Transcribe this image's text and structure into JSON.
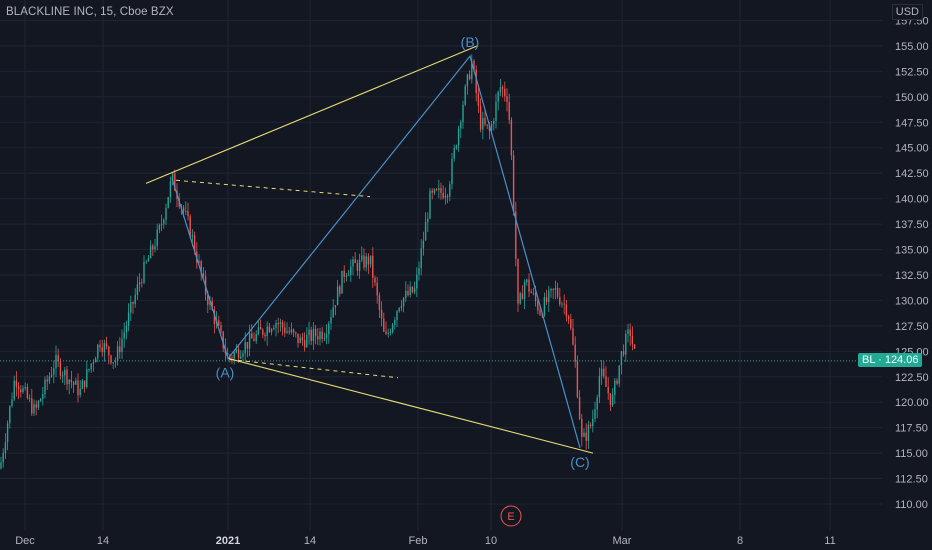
{
  "header": {
    "title": "BLACKLINE INC, 15, Cboe BZX",
    "currency": "USD"
  },
  "last_price": {
    "symbol": "BL",
    "value": "124.06",
    "label": "BL · 124.06"
  },
  "event_marker": "E",
  "colors": {
    "background": "#131722",
    "grid": "#1f2433",
    "candle_up": "#26a69a",
    "candle_down": "#ef5350",
    "wave": "#4a90c6",
    "trendline": "#e6db74",
    "dashed": "#e6db74",
    "price_line": "#26a69a",
    "axis_text": "#b2b5be"
  },
  "chart_data": {
    "type": "candlestick",
    "title": "BLACKLINE INC, 15, Cboe BZX",
    "y_axis": {
      "ticks": [
        "110.00",
        "112.50",
        "115.00",
        "117.50",
        "120.00",
        "122.50",
        "125.00",
        "127.50",
        "130.00",
        "132.50",
        "135.00",
        "137.50",
        "140.00",
        "142.50",
        "145.00",
        "147.50",
        "150.00",
        "152.50",
        "155.00",
        "157.50"
      ],
      "range": [
        108.5,
        159
      ]
    },
    "x_axis": {
      "ticks": [
        "Dec",
        "14",
        "2021",
        "14",
        "Feb",
        "10",
        "Mar",
        "8",
        "11"
      ],
      "bold": [
        "2021"
      ]
    },
    "price_path": [
      {
        "t": 0,
        "p": 113.5
      },
      {
        "t": 15,
        "p": 122.5
      },
      {
        "t": 35,
        "p": 119
      },
      {
        "t": 55,
        "p": 124
      },
      {
        "t": 80,
        "p": 121
      },
      {
        "t": 100,
        "p": 126
      },
      {
        "t": 115,
        "p": 124
      },
      {
        "t": 140,
        "p": 132
      },
      {
        "t": 160,
        "p": 137
      },
      {
        "t": 172,
        "p": 142
      },
      {
        "t": 190,
        "p": 137
      },
      {
        "t": 205,
        "p": 131
      },
      {
        "t": 228,
        "p": 124.3
      },
      {
        "t": 250,
        "p": 126
      },
      {
        "t": 275,
        "p": 128
      },
      {
        "t": 300,
        "p": 126
      },
      {
        "t": 325,
        "p": 127
      },
      {
        "t": 345,
        "p": 133
      },
      {
        "t": 370,
        "p": 134
      },
      {
        "t": 385,
        "p": 126
      },
      {
        "t": 400,
        "p": 130
      },
      {
        "t": 415,
        "p": 131
      },
      {
        "t": 430,
        "p": 140
      },
      {
        "t": 448,
        "p": 141
      },
      {
        "t": 462,
        "p": 149
      },
      {
        "t": 472,
        "p": 153.5
      },
      {
        "t": 480,
        "p": 147.5
      },
      {
        "t": 490,
        "p": 146.5
      },
      {
        "t": 500,
        "p": 151
      },
      {
        "t": 508,
        "p": 150
      },
      {
        "t": 512,
        "p": 143
      },
      {
        "t": 518,
        "p": 129
      },
      {
        "t": 525,
        "p": 132
      },
      {
        "t": 540,
        "p": 129
      },
      {
        "t": 555,
        "p": 131
      },
      {
        "t": 568,
        "p": 129
      },
      {
        "t": 575,
        "p": 124
      },
      {
        "t": 582,
        "p": 116
      },
      {
        "t": 592,
        "p": 118
      },
      {
        "t": 600,
        "p": 123
      },
      {
        "t": 612,
        "p": 120
      },
      {
        "t": 622,
        "p": 125
      },
      {
        "t": 630,
        "p": 127
      },
      {
        "t": 636,
        "p": 124
      }
    ],
    "annotations": {
      "waves": [
        {
          "label": "(A)",
          "t": 228,
          "p": 124.3
        },
        {
          "label": "(B)",
          "t": 470,
          "p": 154
        },
        {
          "label": "(C)",
          "t": 580,
          "p": 115.5
        }
      ],
      "wave_path": [
        {
          "t": 172,
          "p": 142
        },
        {
          "t": 228,
          "p": 124.3
        },
        {
          "t": 470,
          "p": 154
        },
        {
          "t": 580,
          "p": 115.5
        }
      ],
      "trendlines": [
        {
          "from": {
            "t": 146,
            "p": 141.5
          },
          "to": {
            "t": 477,
            "p": 155
          }
        },
        {
          "from": {
            "t": 228,
            "p": 124.3
          },
          "to": {
            "t": 593,
            "p": 115
          }
        }
      ],
      "dashed_lines": [
        {
          "from": {
            "t": 176,
            "p": 141.8
          },
          "to": {
            "t": 370,
            "p": 140.2
          }
        },
        {
          "from": {
            "t": 230,
            "p": 124.2
          },
          "to": {
            "t": 398,
            "p": 122.4
          }
        }
      ]
    },
    "last_value": 124.06
  }
}
